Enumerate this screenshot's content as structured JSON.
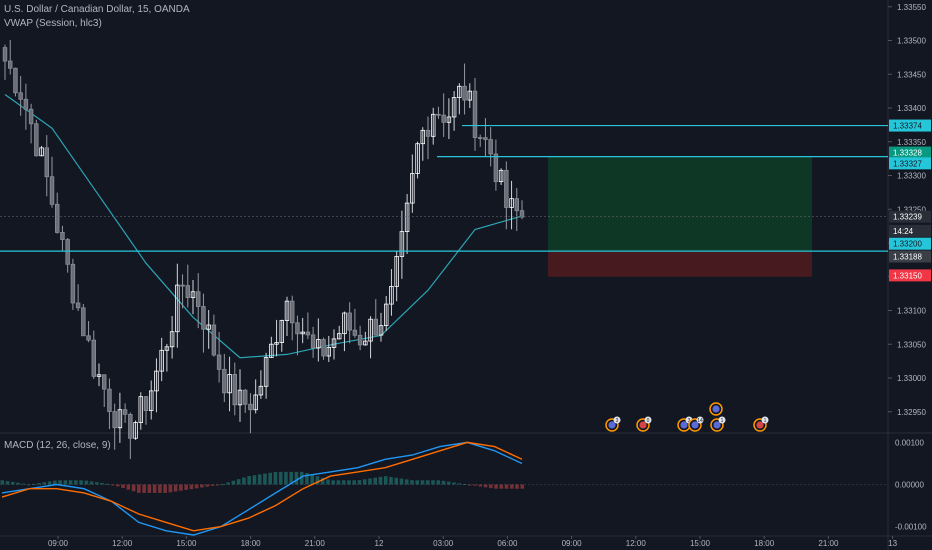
{
  "header": {
    "symbol_line": "U.S. Dollar / Canadian Dollar, 15, OANDA",
    "indicator_line": "VWAP (Session, hlc3)"
  },
  "macd": {
    "label": "MACD (12, 26, close, 9)"
  },
  "chart_data": [
    {
      "type": "candlestick",
      "title": "U.S. Dollar / Canadian Dollar, 15, OANDA",
      "ylim": [
        1.3292,
        1.3356
      ],
      "y_ticks": [
        "1.33550",
        "1.33500",
        "1.33450",
        "1.33400",
        "1.33350",
        "1.33300",
        "1.33250",
        "1.33200",
        "1.33150",
        "1.33100",
        "1.33050",
        "1.33000",
        "1.32950"
      ],
      "x_ticks": [
        "09:00",
        "12:00",
        "15:00",
        "18:00",
        "21:00",
        "12",
        "03:00",
        "06:00",
        "09:00",
        "12:00",
        "15:00",
        "18:00",
        "21:00",
        "13"
      ],
      "close_path": [
        1.3347,
        1.3343,
        1.3336,
        1.3328,
        1.3318,
        1.331,
        1.3302,
        1.3297,
        1.3292,
        1.3294,
        1.3299,
        1.3306,
        1.3314,
        1.3312,
        1.3305,
        1.3299,
        1.3296,
        1.3297,
        1.3304,
        1.3312,
        1.3308,
        1.3303,
        1.3305,
        1.3308,
        1.3306,
        1.3308,
        1.331,
        1.3321,
        1.3335,
        1.334,
        1.3339,
        1.3343,
        1.3337,
        1.3333,
        1.3325,
        1.3324
      ],
      "horizontal_lines": [
        1.33374,
        1.33328,
        1.33188
      ],
      "vwap_series": [
        1.3342,
        1.3337,
        1.3327,
        1.3317,
        1.3309,
        1.3303,
        1.33035,
        1.3305,
        1.33063,
        1.3313,
        1.3322,
        1.3324
      ],
      "position": {
        "entry": 1.33188,
        "target": 1.33328,
        "stop": 1.3315
      },
      "price_labels": [
        {
          "text": "1.33374",
          "color": "#26c6da"
        },
        {
          "text": "1.33328",
          "color": "#089981"
        },
        {
          "text": "1.33327",
          "color": "#26c6da"
        },
        {
          "text": "1.33239",
          "color": "#2a2e39"
        },
        {
          "text": "14:24",
          "color": "#2a2e39"
        },
        {
          "text": "1.33200",
          "color": "#26c6da"
        },
        {
          "text": "1.33188",
          "color": "#3a3e47"
        },
        {
          "text": "1.33150",
          "color": "#f23645"
        }
      ],
      "events": [
        {
          "count": "3",
          "flag": "us"
        },
        {
          "count": "0",
          "flag": "ca"
        },
        {
          "count": "3",
          "flag": "us"
        },
        {
          "count": "14",
          "flag": "us"
        },
        {
          "count": "1",
          "flag": "us"
        },
        {
          "count": "1",
          "flag": "ca"
        },
        {
          "count": "",
          "flag": "us"
        }
      ]
    },
    {
      "type": "line",
      "title": "MACD (12, 26, close, 9)",
      "ylim": [
        -0.0012,
        0.0012
      ],
      "y_ticks": [
        "0.00100",
        "0.00000",
        "-0.00100"
      ],
      "series": [
        {
          "color": "#2196f3",
          "values": [
            -0.0002,
            -0.0001,
            0.0,
            -0.0001,
            -0.0004,
            -0.0009,
            -0.0011,
            -0.0012,
            -0.001,
            -0.0006,
            -0.0002,
            0.0002,
            0.0003,
            0.0004,
            0.0006,
            0.0007,
            0.0009,
            0.001,
            0.0008,
            0.0005
          ]
        },
        {
          "color": "#ff6d00",
          "values": [
            -0.0003,
            -0.0001,
            -0.0001,
            -0.0002,
            -0.0004,
            -0.0007,
            -0.0009,
            -0.0011,
            -0.001,
            -0.0008,
            -0.0005,
            -0.0001,
            0.0002,
            0.0003,
            0.0004,
            0.0006,
            0.0008,
            0.001,
            0.0009,
            0.0006
          ]
        }
      ],
      "histogram": [
        0.0001,
        0.0,
        0.0001,
        0.0001,
        0.0,
        -0.0002,
        -0.0002,
        -0.0001,
        0.0,
        0.0002,
        0.0003,
        0.0003,
        0.0001,
        0.0001,
        0.0002,
        0.0001,
        0.0001,
        0.0,
        -0.0001,
        -0.0001
      ]
    }
  ],
  "colors": {
    "background": "#131722",
    "candle": "#ffffff",
    "level_line": "#26c6da",
    "vwap": "#2ba4b4",
    "profit_zone": "#0e3a26",
    "loss_zone": "#4a1a20",
    "macd": "#2196f3",
    "signal": "#ff6d00"
  }
}
